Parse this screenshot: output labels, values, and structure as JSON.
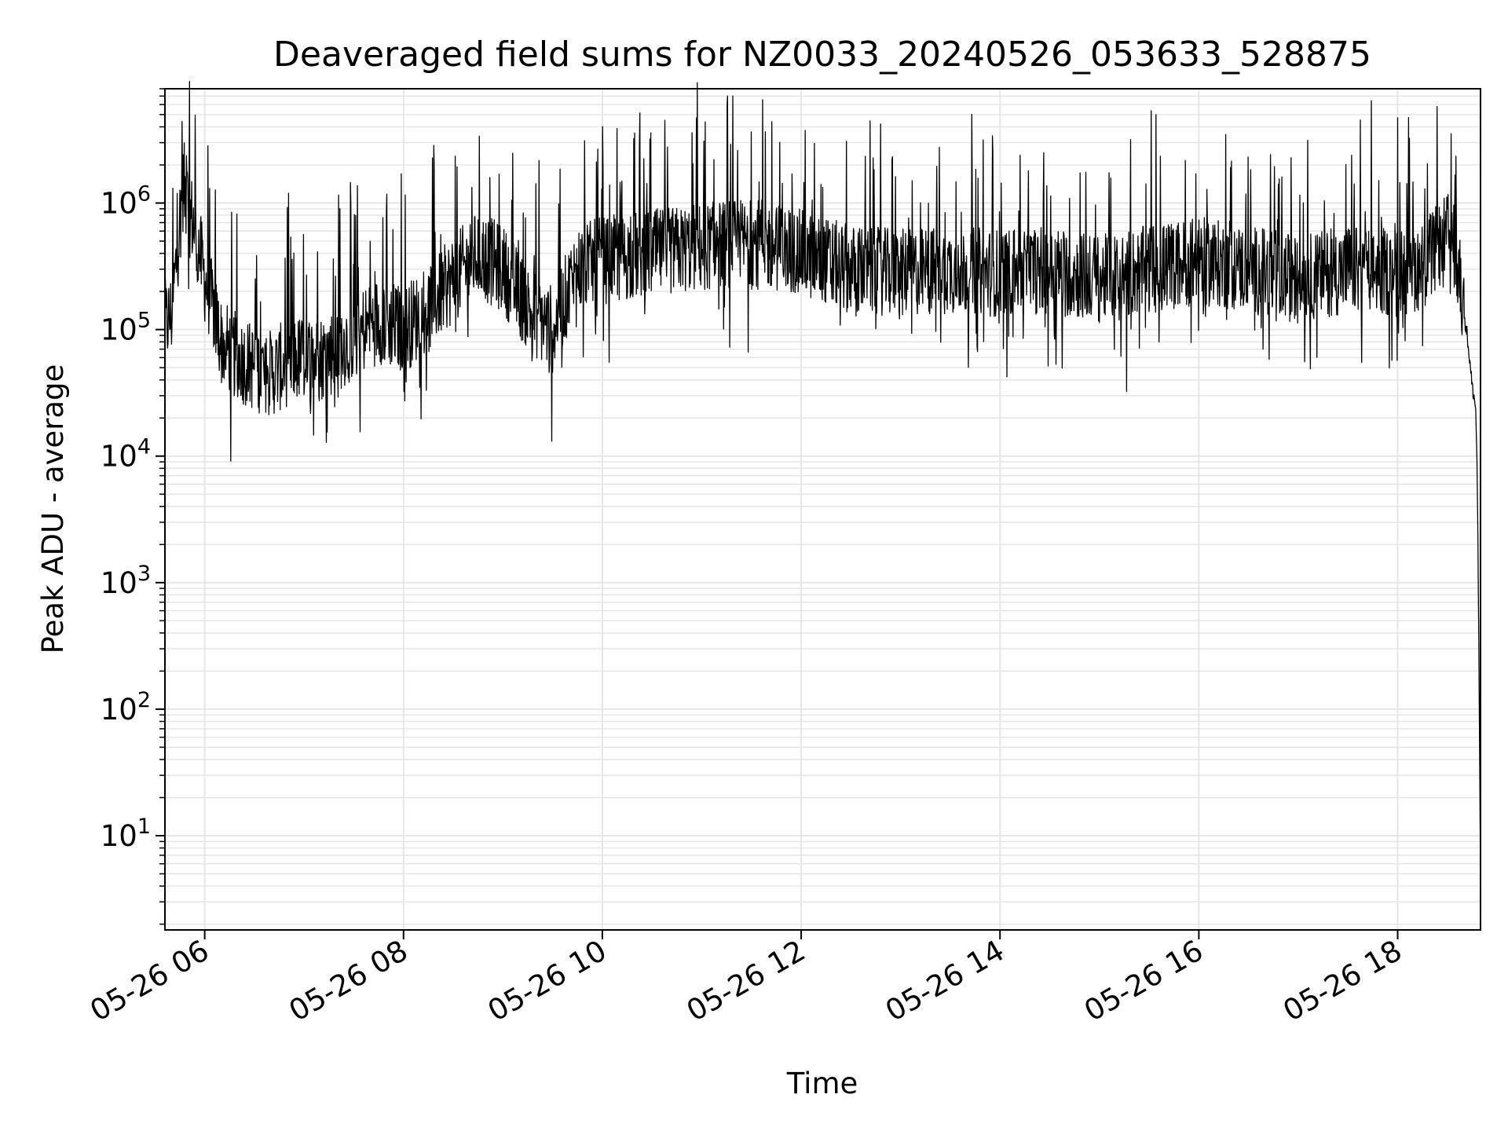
{
  "chart_data": {
    "type": "line",
    "title": "Deaveraged field sums for NZ0033_20240526_053633_528875",
    "xlabel": "Time",
    "ylabel": "Peak ADU - average",
    "yscale": "log",
    "ylim": [
      1.8,
      8000000
    ],
    "xlim": [
      "2024-05-26 05:36",
      "2024-05-26 18:50"
    ],
    "x_ticks": [
      {
        "x": "2024-05-26 06:00",
        "label": "05-26 06"
      },
      {
        "x": "2024-05-26 08:00",
        "label": "05-26 08"
      },
      {
        "x": "2024-05-26 10:00",
        "label": "05-26 10"
      },
      {
        "x": "2024-05-26 12:00",
        "label": "05-26 12"
      },
      {
        "x": "2024-05-26 14:00",
        "label": "05-26 14"
      },
      {
        "x": "2024-05-26 16:00",
        "label": "05-26 16"
      },
      {
        "x": "2024-05-26 18:00",
        "label": "05-26 18"
      }
    ],
    "y_ticks": [
      {
        "y": 10,
        "base": "10",
        "exp": "1"
      },
      {
        "y": 100,
        "base": "10",
        "exp": "2"
      },
      {
        "y": 1000,
        "base": "10",
        "exp": "3"
      },
      {
        "y": 10000,
        "base": "10",
        "exp": "4"
      },
      {
        "y": 100000,
        "base": "10",
        "exp": "5"
      },
      {
        "y": 1000000,
        "base": "10",
        "exp": "6"
      }
    ],
    "grid": "both (major and minor)",
    "line_color": "#000000",
    "grid_color": "#e6e6e6",
    "series": [
      {
        "x": [
          "2024-05-26 05:36",
          "2024-05-26 05:40",
          "2024-05-26 05:44",
          "2024-05-26 05:47",
          "2024-05-26 05:50",
          "2024-05-26 05:53",
          "2024-05-26 05:57",
          "2024-05-26 06:00",
          "2024-05-26 06:05",
          "2024-05-26 06:10",
          "2024-05-26 06:20",
          "2024-05-26 06:30",
          "2024-05-26 06:40",
          "2024-05-26 06:50",
          "2024-05-26 07:00",
          "2024-05-26 07:10",
          "2024-05-26 07:20",
          "2024-05-26 07:30",
          "2024-05-26 07:45",
          "2024-05-26 08:00",
          "2024-05-26 08:15",
          "2024-05-26 08:30",
          "2024-05-26 08:45",
          "2024-05-26 09:00",
          "2024-05-26 09:15",
          "2024-05-26 09:30",
          "2024-05-26 09:45",
          "2024-05-26 10:00",
          "2024-05-26 10:30",
          "2024-05-26 11:00",
          "2024-05-26 11:30",
          "2024-05-26 12:00",
          "2024-05-26 12:30",
          "2024-05-26 13:00",
          "2024-05-26 13:30",
          "2024-05-26 14:00",
          "2024-05-26 14:30",
          "2024-05-26 15:00",
          "2024-05-26 15:30",
          "2024-05-26 16:00",
          "2024-05-26 16:30",
          "2024-05-26 17:00",
          "2024-05-26 17:30",
          "2024-05-26 18:00",
          "2024-05-26 18:15",
          "2024-05-26 18:28",
          "2024-05-26 18:33",
          "2024-05-26 18:38",
          "2024-05-26 18:42",
          "2024-05-26 18:45",
          "2024-05-26 18:47",
          "2024-05-26 18:48",
          "2024-05-26 18:49",
          "2024-05-26 18:50"
        ],
        "y": [
          110000,
          130000,
          500000,
          1500000,
          900000,
          700000,
          400000,
          250000,
          150000,
          80000,
          60000,
          50000,
          45000,
          55000,
          60000,
          60000,
          70000,
          90000,
          120000,
          100000,
          150000,
          250000,
          400000,
          300000,
          150000,
          100000,
          300000,
          350000,
          400000,
          450000,
          500000,
          400000,
          300000,
          280000,
          300000,
          280000,
          300000,
          250000,
          300000,
          350000,
          300000,
          250000,
          300000,
          280000,
          320000,
          500000,
          600000,
          200000,
          90000,
          35000,
          25000,
          8000,
          300,
          4
        ]
      }
    ]
  }
}
